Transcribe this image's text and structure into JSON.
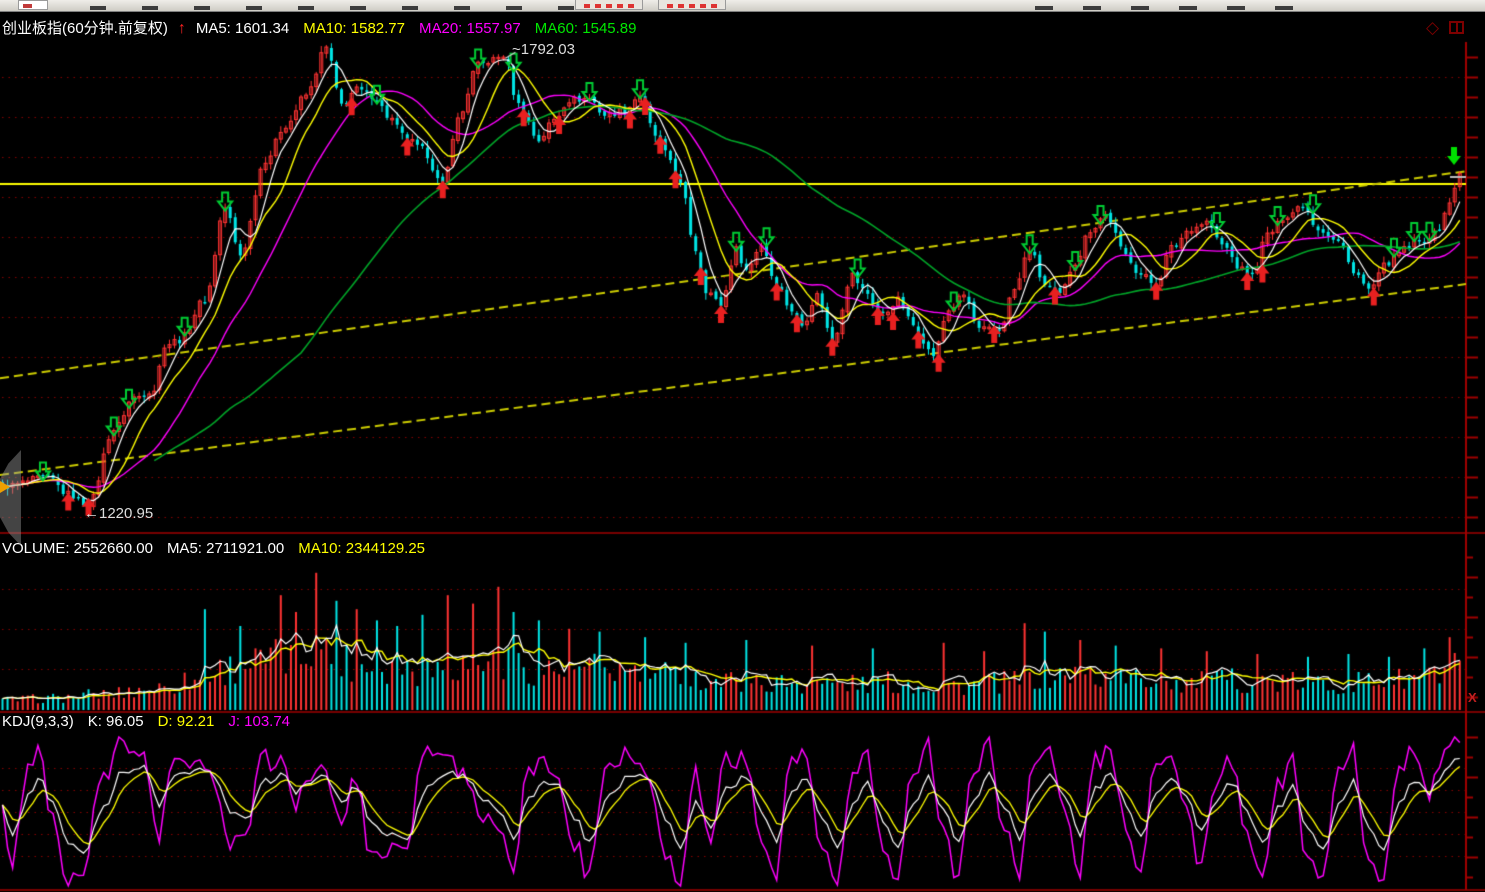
{
  "colors": {
    "background": "#000000",
    "up": "#FF3232",
    "down": "#00E6E6",
    "ma5": "#FFFFFF",
    "ma10": "#FFFF00",
    "ma20": "#FF00FF",
    "ma60": "#00A428",
    "grid": "#8B0000",
    "axis": "#A00000",
    "trend_diagonal": "#CCCC00",
    "trend_horizontal": "#FFFF00",
    "buy_arrow": "#E82020",
    "sell_arrow": "#00CC33",
    "latest_arrow": "#00E000",
    "vol_ma5": "#FFFFFF",
    "vol_ma10": "#FFFF00",
    "k_line": "#FFFFFF",
    "d_line": "#FFFF00",
    "j_line": "#FF00FF",
    "label_white": "#FFFFFF",
    "label_yellow": "#FFFF00",
    "label_magenta": "#FF00FF",
    "label_green": "#00E700",
    "annotation": "#DDDDDD"
  },
  "icons": {
    "up_arrow": "↑",
    "diamond": "◇",
    "close": "X"
  },
  "main_chart": {
    "title": "创业板指(60分钟.前复权)",
    "ma_labels": [
      {
        "label": "MA5: 1601.34",
        "color": "#FFFFFF"
      },
      {
        "label": "MA10: 1582.77",
        "color": "#FFFF00"
      },
      {
        "label": "MA20: 1557.97",
        "color": "#FF00FF"
      },
      {
        "label": "MA60: 1545.89",
        "color": "#00E700"
      }
    ],
    "annotation_high": "~1792.03",
    "annotation_low": "←1220.95"
  },
  "volume_pane": {
    "label_volume": "VOLUME: 2552660.00",
    "label_ma5": "MA5: 2711921.00",
    "label_ma10": "MA10: 2344129.25"
  },
  "kdj_pane": {
    "label_kdj": "KDJ(9,3,3)",
    "label_k": "K: 96.05",
    "label_d": "D: 92.21",
    "label_j": "J: 103.74"
  },
  "chart_data": [
    {
      "type": "candlestick",
      "title": "创业板指(60分钟.前复权)",
      "bars": 289,
      "ylim": [
        1190,
        1810
      ],
      "high_annotation": 1792.03,
      "low_annotation": 1220.95,
      "high_bar": 99,
      "low_bar": 17,
      "ma_current": {
        "MA5": 1601.34,
        "MA10": 1582.77,
        "MA20": 1557.97,
        "MA60": 1545.89
      },
      "price_path": [
        [
          0,
          1244
        ],
        [
          9,
          1255
        ],
        [
          13,
          1234
        ],
        [
          17,
          1221
        ],
        [
          22,
          1316
        ],
        [
          26,
          1357
        ],
        [
          30,
          1367
        ],
        [
          32,
          1424
        ],
        [
          35,
          1430
        ],
        [
          40,
          1481
        ],
        [
          44,
          1598
        ],
        [
          47,
          1538
        ],
        [
          52,
          1659
        ],
        [
          56,
          1703
        ],
        [
          60,
          1741
        ],
        [
          64,
          1801
        ],
        [
          67,
          1729
        ],
        [
          70,
          1748
        ],
        [
          73,
          1741
        ],
        [
          77,
          1710
        ],
        [
          79,
          1690
        ],
        [
          83,
          1672
        ],
        [
          87,
          1627
        ],
        [
          90,
          1710
        ],
        [
          94,
          1779
        ],
        [
          97,
          1786
        ],
        [
          99,
          1792
        ],
        [
          102,
          1729
        ],
        [
          106,
          1684
        ],
        [
          109,
          1710
        ],
        [
          112,
          1735
        ],
        [
          116,
          1737
        ],
        [
          119,
          1716
        ],
        [
          123,
          1722
        ],
        [
          126,
          1741
        ],
        [
          129,
          1690
        ],
        [
          132,
          1659
        ],
        [
          134,
          1627
        ],
        [
          137,
          1545
        ],
        [
          139,
          1494
        ],
        [
          142,
          1475
        ],
        [
          145,
          1545
        ],
        [
          147,
          1519
        ],
        [
          150,
          1551
        ],
        [
          153,
          1500
        ],
        [
          156,
          1468
        ],
        [
          158,
          1449
        ],
        [
          161,
          1487
        ],
        [
          164,
          1430
        ],
        [
          168,
          1513
        ],
        [
          170,
          1494
        ],
        [
          174,
          1462
        ],
        [
          177,
          1481
        ],
        [
          180,
          1449
        ],
        [
          184,
          1411
        ],
        [
          187,
          1468
        ],
        [
          190,
          1487
        ],
        [
          193,
          1443
        ],
        [
          197,
          1443
        ],
        [
          200,
          1494
        ],
        [
          203,
          1545
        ],
        [
          206,
          1500
        ],
        [
          209,
          1487
        ],
        [
          212,
          1529
        ],
        [
          215,
          1570
        ],
        [
          218,
          1589
        ],
        [
          222,
          1538
        ],
        [
          225,
          1513
        ],
        [
          228,
          1500
        ],
        [
          231,
          1547
        ],
        [
          235,
          1572
        ],
        [
          238,
          1580
        ],
        [
          241,
          1551
        ],
        [
          245,
          1519
        ],
        [
          247,
          1513
        ],
        [
          250,
          1564
        ],
        [
          254,
          1589
        ],
        [
          257,
          1602
        ],
        [
          260,
          1572
        ],
        [
          264,
          1555
        ],
        [
          267,
          1519
        ],
        [
          270,
          1494
        ],
        [
          274,
          1529
        ],
        [
          277,
          1545
        ],
        [
          280,
          1555
        ],
        [
          283,
          1564
        ],
        [
          286,
          1602
        ],
        [
          288,
          1644
        ]
      ],
      "trendlines": [
        {
          "kind": "horizontal",
          "price": 1628.3
        },
        {
          "kind": "diagonal",
          "from_price": 1382.1,
          "to_price": 1643.5
        },
        {
          "kind": "diagonal",
          "from_price": 1259.0,
          "to_price": 1500.1
        }
      ],
      "signals": {
        "buy": [
          13,
          17,
          69,
          80,
          87,
          103,
          110,
          124,
          127,
          130,
          133,
          138,
          142,
          153,
          157,
          164,
          173,
          176,
          181,
          185,
          196,
          208,
          228,
          246,
          249,
          271
        ],
        "sell": [
          8,
          22,
          25,
          36,
          44,
          74,
          94,
          101,
          116,
          126,
          145,
          151,
          169,
          188,
          203,
          212,
          217,
          240,
          252,
          259,
          275,
          279,
          282
        ],
        "latest_sell": 287
      }
    },
    {
      "type": "bar",
      "current": 2552660.0,
      "ma5": 2711921.0,
      "ma10": 2344129.25,
      "envelope": [
        [
          0,
          0.1
        ],
        [
          10,
          0.12
        ],
        [
          20,
          0.16
        ],
        [
          30,
          0.22
        ],
        [
          38,
          0.3
        ],
        [
          44,
          0.42
        ],
        [
          50,
          0.48
        ],
        [
          56,
          0.52
        ],
        [
          62,
          0.6
        ],
        [
          68,
          0.5
        ],
        [
          75,
          0.44
        ],
        [
          82,
          0.42
        ],
        [
          90,
          0.46
        ],
        [
          97,
          0.5
        ],
        [
          103,
          0.44
        ],
        [
          110,
          0.4
        ],
        [
          118,
          0.42
        ],
        [
          126,
          0.38
        ],
        [
          134,
          0.34
        ],
        [
          140,
          0.3
        ],
        [
          150,
          0.27
        ],
        [
          158,
          0.28
        ],
        [
          166,
          0.26
        ],
        [
          174,
          0.28
        ],
        [
          182,
          0.26
        ],
        [
          190,
          0.25
        ],
        [
          198,
          0.28
        ],
        [
          205,
          0.34
        ],
        [
          212,
          0.36
        ],
        [
          220,
          0.32
        ],
        [
          228,
          0.3
        ],
        [
          236,
          0.28
        ],
        [
          244,
          0.3
        ],
        [
          252,
          0.28
        ],
        [
          260,
          0.26
        ],
        [
          268,
          0.28
        ],
        [
          276,
          0.3
        ],
        [
          283,
          0.34
        ],
        [
          288,
          0.42
        ]
      ],
      "spikes": [
        [
          40,
          0.72
        ],
        [
          47,
          0.6
        ],
        [
          55,
          0.82
        ],
        [
          58,
          0.7
        ],
        [
          62,
          0.98
        ],
        [
          66,
          0.78
        ],
        [
          70,
          0.72
        ],
        [
          74,
          0.64
        ],
        [
          78,
          0.6
        ],
        [
          83,
          0.68
        ],
        [
          88,
          0.82
        ],
        [
          93,
          0.76
        ],
        [
          98,
          0.88
        ],
        [
          101,
          0.7
        ],
        [
          106,
          0.64
        ],
        [
          112,
          0.58
        ],
        [
          118,
          0.56
        ],
        [
          127,
          0.52
        ],
        [
          135,
          0.48
        ],
        [
          147,
          0.5
        ],
        [
          160,
          0.46
        ],
        [
          172,
          0.44
        ],
        [
          186,
          0.48
        ],
        [
          194,
          0.42
        ],
        [
          202,
          0.62
        ],
        [
          206,
          0.56
        ],
        [
          213,
          0.5
        ],
        [
          220,
          0.46
        ],
        [
          229,
          0.44
        ],
        [
          238,
          0.42
        ],
        [
          248,
          0.4
        ],
        [
          258,
          0.38
        ],
        [
          266,
          0.4
        ],
        [
          274,
          0.38
        ],
        [
          281,
          0.44
        ],
        [
          286,
          0.52
        ]
      ]
    },
    {
      "type": "line",
      "params": "9,3,3",
      "current": {
        "K": 96.05,
        "D": 92.21,
        "J": 103.74
      },
      "k_path": [
        [
          0,
          55
        ],
        [
          2,
          30
        ],
        [
          5,
          62
        ],
        [
          7,
          80
        ],
        [
          10,
          58
        ],
        [
          13,
          22
        ],
        [
          16,
          14
        ],
        [
          20,
          55
        ],
        [
          24,
          86
        ],
        [
          28,
          88
        ],
        [
          31,
          56
        ],
        [
          34,
          80
        ],
        [
          38,
          86
        ],
        [
          42,
          82
        ],
        [
          45,
          50
        ],
        [
          48,
          42
        ],
        [
          52,
          76
        ],
        [
          55,
          82
        ],
        [
          58,
          68
        ],
        [
          61,
          76
        ],
        [
          64,
          80
        ],
        [
          67,
          58
        ],
        [
          70,
          72
        ],
        [
          73,
          40
        ],
        [
          76,
          30
        ],
        [
          80,
          28
        ],
        [
          84,
          72
        ],
        [
          88,
          84
        ],
        [
          92,
          80
        ],
        [
          95,
          60
        ],
        [
          98,
          50
        ],
        [
          101,
          26
        ],
        [
          104,
          60
        ],
        [
          107,
          78
        ],
        [
          110,
          72
        ],
        [
          113,
          45
        ],
        [
          116,
          24
        ],
        [
          120,
          66
        ],
        [
          124,
          82
        ],
        [
          128,
          80
        ],
        [
          131,
          44
        ],
        [
          134,
          20
        ],
        [
          137,
          58
        ],
        [
          140,
          36
        ],
        [
          143,
          70
        ],
        [
          147,
          80
        ],
        [
          150,
          52
        ],
        [
          153,
          24
        ],
        [
          156,
          68
        ],
        [
          159,
          78
        ],
        [
          162,
          42
        ],
        [
          165,
          18
        ],
        [
          168,
          55
        ],
        [
          171,
          75
        ],
        [
          174,
          42
        ],
        [
          177,
          16
        ],
        [
          180,
          58
        ],
        [
          183,
          80
        ],
        [
          186,
          52
        ],
        [
          189,
          22
        ],
        [
          192,
          62
        ],
        [
          195,
          82
        ],
        [
          198,
          55
        ],
        [
          201,
          26
        ],
        [
          204,
          68
        ],
        [
          207,
          82
        ],
        [
          210,
          62
        ],
        [
          213,
          30
        ],
        [
          216,
          70
        ],
        [
          219,
          82
        ],
        [
          222,
          58
        ],
        [
          225,
          28
        ],
        [
          228,
          68
        ],
        [
          231,
          80
        ],
        [
          234,
          62
        ],
        [
          237,
          34
        ],
        [
          240,
          58
        ],
        [
          243,
          76
        ],
        [
          246,
          48
        ],
        [
          249,
          22
        ],
        [
          252,
          52
        ],
        [
          255,
          72
        ],
        [
          258,
          34
        ],
        [
          261,
          16
        ],
        [
          264,
          56
        ],
        [
          267,
          76
        ],
        [
          270,
          34
        ],
        [
          273,
          18
        ],
        [
          276,
          58
        ],
        [
          279,
          78
        ],
        [
          282,
          66
        ],
        [
          285,
          84
        ],
        [
          288,
          96
        ]
      ]
    }
  ]
}
